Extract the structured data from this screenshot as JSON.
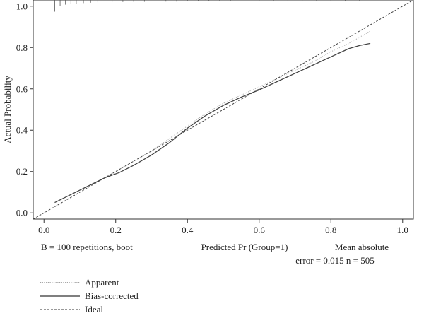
{
  "chart_data": {
    "type": "line",
    "title": "",
    "xlabel": "Predicted Pr (Group=1)",
    "ylabel": "Actual Probability",
    "xlim": [
      -0.03,
      1.03
    ],
    "ylim": [
      -0.03,
      1.03
    ],
    "x_ticks": [
      "0.0",
      "0.2",
      "0.4",
      "0.6",
      "0.8",
      "1.0"
    ],
    "y_ticks": [
      "0.0",
      "0.2",
      "0.4",
      "0.6",
      "0.8",
      "1.0"
    ],
    "grid": false,
    "footnote_left": "B = 100 repetitions, boot",
    "footnote_right_line1": "Mean absolute",
    "footnote_right_line2": "error = 0.015 n = 505",
    "series": [
      {
        "name": "Apparent",
        "style": "dotted",
        "color": "#aaaaaa",
        "x": [
          0.03,
          0.1,
          0.17,
          0.2,
          0.25,
          0.3,
          0.35,
          0.4,
          0.45,
          0.5,
          0.55,
          0.6,
          0.65,
          0.7,
          0.75,
          0.8,
          0.85,
          0.91
        ],
        "y": [
          0.05,
          0.11,
          0.17,
          0.2,
          0.25,
          0.3,
          0.36,
          0.42,
          0.48,
          0.53,
          0.57,
          0.61,
          0.65,
          0.69,
          0.73,
          0.78,
          0.82,
          0.88
        ]
      },
      {
        "name": "Bias-corrected",
        "style": "solid",
        "color": "#444444",
        "x": [
          0.03,
          0.1,
          0.17,
          0.21,
          0.25,
          0.3,
          0.35,
          0.4,
          0.45,
          0.5,
          0.55,
          0.6,
          0.65,
          0.7,
          0.75,
          0.8,
          0.85,
          0.88,
          0.91
        ],
        "y": [
          0.05,
          0.11,
          0.17,
          0.195,
          0.23,
          0.28,
          0.34,
          0.41,
          0.47,
          0.52,
          0.56,
          0.595,
          0.635,
          0.675,
          0.715,
          0.755,
          0.795,
          0.81,
          0.82
        ]
      },
      {
        "name": "Ideal",
        "style": "dashed",
        "color": "#444444",
        "x": [
          -0.03,
          1.03
        ],
        "y": [
          -0.03,
          1.03
        ]
      }
    ],
    "rug": {
      "x": [
        0.03,
        0.045,
        0.06,
        0.075,
        0.09,
        0.11,
        0.13,
        0.15,
        0.17,
        0.19,
        0.22,
        0.25,
        0.28,
        0.31,
        0.34,
        0.37,
        0.4,
        0.43,
        0.46,
        0.49,
        0.52,
        0.56,
        0.6,
        0.64,
        0.68,
        0.72,
        0.76,
        0.8,
        0.84,
        0.88
      ],
      "h": [
        3,
        1.5,
        1.2,
        1.0,
        0.9,
        0.8,
        0.7,
        0.6,
        0.6,
        0.5,
        0.5,
        0.45,
        0.45,
        0.4,
        0.4,
        0.4,
        0.35,
        0.35,
        0.35,
        0.3,
        0.3,
        0.3,
        0.3,
        0.3,
        0.3,
        0.3,
        0.3,
        0.3,
        0.3,
        0.3
      ]
    }
  }
}
